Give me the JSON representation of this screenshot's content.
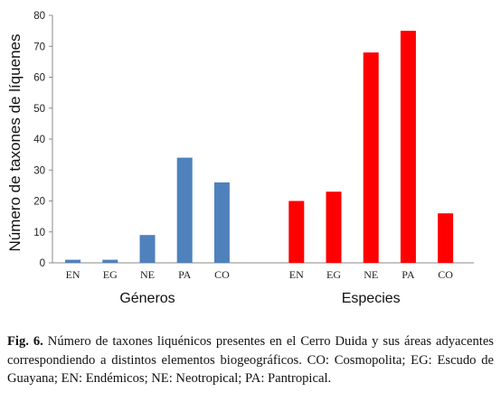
{
  "chart_data": {
    "type": "bar",
    "ylabel": "Número de taxones de líquenes",
    "ylim": [
      0,
      80
    ],
    "yticks": [
      0,
      10,
      20,
      30,
      40,
      50,
      60,
      70,
      80
    ],
    "grid": false,
    "groups": [
      {
        "name": "Géneros",
        "color": "#4f81bd",
        "categories": [
          "EN",
          "EG",
          "NE",
          "PA",
          "CO"
        ],
        "values": [
          1,
          1,
          9,
          34,
          26
        ]
      },
      {
        "name": "Especies",
        "color": "#ff0000",
        "categories": [
          "EN",
          "EG",
          "NE",
          "PA",
          "CO"
        ],
        "values": [
          20,
          23,
          68,
          75,
          16
        ]
      }
    ]
  },
  "caption": {
    "label": "Fig. 6.",
    "text": "Número de taxones liquénicos presentes en el Cerro Duida y sus áreas adyacentes correspondiendo a distintos elementos biogeográficos. CO: Cosmopolita; EG: Escudo de Guayana; EN: Endémicos; NE: Neotropical; PA: Pantropical."
  }
}
